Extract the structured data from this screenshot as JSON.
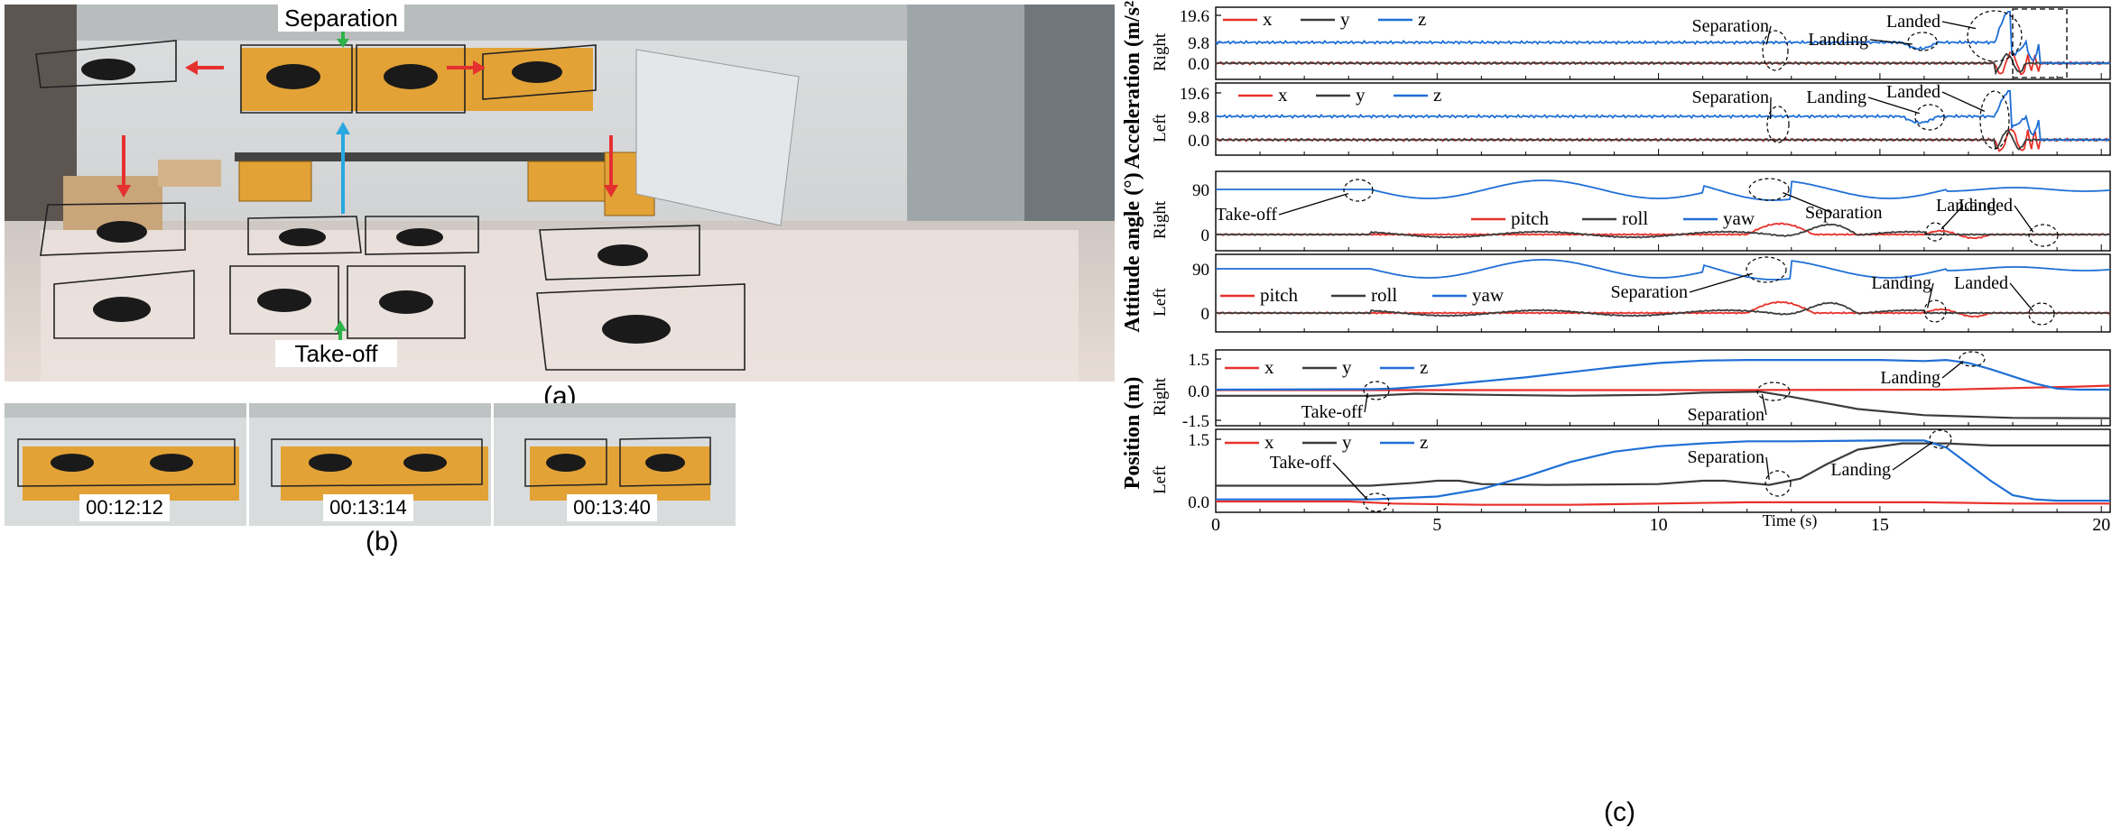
{
  "photos": {
    "a": {
      "caption": "(a)",
      "labels": {
        "separation": "Separation",
        "takeoff": "Take-off"
      }
    },
    "b": {
      "caption": "(b)",
      "timestamps": [
        "00:12:12",
        "00:13:14",
        "00:13:40"
      ]
    }
  },
  "figure_c": {
    "caption": "(c)"
  },
  "colors": {
    "x": "#e8312b",
    "y": "#3c3c3c",
    "z": "#1f6fd6",
    "annotation_green": "#2db34a",
    "annotation_blue": "#29a8e0",
    "annotation_red": "#e53030"
  },
  "chart_data": [
    {
      "type": "line",
      "group": "Acceleration (m/s²)",
      "panel": "Right",
      "xlabel": "",
      "ylabel": "Right",
      "x_range": [
        0,
        20.2
      ],
      "y_ticks": [
        "19.6",
        "9.8",
        "0.0"
      ],
      "legend": [
        "x",
        "y",
        "z"
      ],
      "annotations": [
        "Separation",
        "Landing",
        "Landed"
      ]
    },
    {
      "type": "line",
      "group": "Acceleration (m/s²)",
      "panel": "Left",
      "xlabel": "",
      "ylabel": "Left",
      "x_range": [
        0,
        20.2
      ],
      "y_ticks": [
        "19.6",
        "9.8",
        "0.0"
      ],
      "legend": [
        "x",
        "y",
        "z"
      ],
      "annotations": [
        "Separation",
        "Landing",
        "Landed"
      ]
    },
    {
      "type": "line",
      "group": "Attitude angle (°)",
      "panel": "Right",
      "ylabel": "Right",
      "x_range": [
        0,
        20.2
      ],
      "y_ticks": [
        "90",
        "0"
      ],
      "legend": [
        "pitch",
        "roll",
        "yaw"
      ],
      "annotations": [
        "Take-off",
        "Separation",
        "Landing",
        "Landed"
      ]
    },
    {
      "type": "line",
      "group": "Attitude angle (°)",
      "panel": "Left",
      "ylabel": "Left",
      "x_range": [
        0,
        20.2
      ],
      "y_ticks": [
        "90",
        "0"
      ],
      "legend": [
        "pitch",
        "roll",
        "yaw"
      ],
      "annotations": [
        "Separation",
        "Landing",
        "Landed"
      ]
    },
    {
      "type": "line",
      "group": "Position (m)",
      "panel": "Right",
      "ylabel": "Right",
      "x_range": [
        0,
        20.2
      ],
      "y_ticks": [
        "1.5",
        "0.0",
        "-1.5"
      ],
      "legend": [
        "x",
        "y",
        "z"
      ],
      "annotations": [
        "Take-off",
        "Separation",
        "Landing"
      ],
      "series": [
        {
          "name": "x",
          "x": [
            0,
            5,
            10,
            15,
            16.5,
            17.5,
            18.5,
            19.5,
            20.2
          ],
          "values": [
            -0.02,
            -0.02,
            -0.02,
            -0.01,
            0,
            0.05,
            0.1,
            0.15,
            0.2
          ]
        },
        {
          "name": "y",
          "x": [
            0,
            3.5,
            4.5,
            6,
            8,
            10,
            11,
            12.3,
            13,
            14.5,
            16,
            18,
            20.2
          ],
          "values": [
            -0.3,
            -0.3,
            -0.2,
            -0.25,
            -0.3,
            -0.25,
            -0.15,
            -0.1,
            -0.35,
            -0.95,
            -1.25,
            -1.38,
            -1.4
          ]
        },
        {
          "name": "z",
          "x": [
            0,
            3.5,
            4,
            5,
            6,
            7,
            8,
            9,
            10,
            11,
            12,
            13,
            15,
            16,
            16.5,
            17,
            17.5,
            18,
            18.5,
            19,
            19.5,
            20.2
          ],
          "values": [
            0,
            0.02,
            0.05,
            0.2,
            0.4,
            0.6,
            0.85,
            1.1,
            1.3,
            1.42,
            1.45,
            1.45,
            1.45,
            1.4,
            1.45,
            1.3,
            1.0,
            0.65,
            0.3,
            0.05,
            0,
            0
          ]
        }
      ]
    },
    {
      "type": "line",
      "group": "Position (m)",
      "panel": "Left",
      "xlabel": "Time (s)",
      "ylabel": "Left",
      "x_range": [
        0,
        20.2
      ],
      "x_ticks": [
        0,
        5,
        10,
        15,
        20
      ],
      "y_ticks": [
        "1.5",
        "0.0"
      ],
      "legend": [
        "x",
        "y",
        "z"
      ],
      "annotations": [
        "Take-off",
        "Separation",
        "Landing"
      ],
      "series": [
        {
          "name": "x",
          "x": [
            0,
            3,
            4,
            6,
            8,
            10,
            12,
            14,
            16,
            18,
            20.2
          ],
          "values": [
            0,
            0,
            -0.05,
            -0.08,
            -0.08,
            -0.05,
            -0.02,
            -0.02,
            -0.02,
            -0.05,
            -0.05
          ]
        },
        {
          "name": "y",
          "x": [
            0,
            3.5,
            4.5,
            5,
            5.5,
            6,
            7.5,
            10,
            11,
            11.5,
            12,
            12.5,
            13.2,
            13.8,
            14.5,
            15.5,
            16.5,
            17.5,
            20.2
          ],
          "values": [
            0.38,
            0.38,
            0.45,
            0.5,
            0.5,
            0.42,
            0.4,
            0.42,
            0.5,
            0.5,
            0.45,
            0.4,
            0.55,
            0.9,
            1.25,
            1.4,
            1.4,
            1.35,
            1.35
          ]
        },
        {
          "name": "z",
          "x": [
            0,
            3.5,
            5,
            6,
            7,
            8,
            9,
            10,
            11,
            12,
            13,
            15,
            16,
            16.5,
            17,
            17.5,
            18,
            18.5,
            19,
            20.2
          ],
          "values": [
            0.05,
            0.05,
            0.12,
            0.3,
            0.6,
            0.95,
            1.2,
            1.33,
            1.4,
            1.45,
            1.45,
            1.47,
            1.47,
            1.3,
            0.9,
            0.5,
            0.15,
            0.05,
            0.02,
            0.02
          ]
        }
      ]
    }
  ]
}
